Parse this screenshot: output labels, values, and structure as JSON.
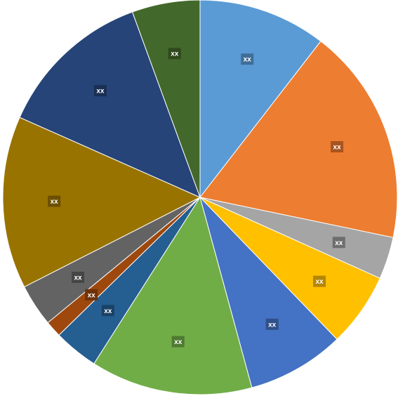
{
  "chart_data": {
    "type": "pie",
    "title": "",
    "start_angle_deg": 0,
    "direction": "clockwise",
    "slices": [
      {
        "label": "xx",
        "value": 10.9,
        "color": "#5B9BD5",
        "label_bg": "#3F6E98"
      },
      {
        "label": "xx",
        "value": 18.5,
        "color": "#ED7D31",
        "label_bg": "#A85420"
      },
      {
        "label": "xx",
        "value": 3.6,
        "color": "#A5A5A5",
        "label_bg": "#6E6E6E"
      },
      {
        "label": "xx",
        "value": 6.3,
        "color": "#FFC000",
        "label_bg": "#B58600"
      },
      {
        "label": "xx",
        "value": 8.3,
        "color": "#4472C4",
        "label_bg": "#2F508A"
      },
      {
        "label": "xx",
        "value": 13.8,
        "color": "#70AD47",
        "label_bg": "#4E7A31"
      },
      {
        "label": "xx",
        "value": 3.8,
        "color": "#255E91",
        "label_bg": "#1A4266"
      },
      {
        "label": "xx",
        "value": 1.4,
        "color": "#9E480E",
        "label_bg": "#6E3209"
      },
      {
        "label": "xx",
        "value": 3.6,
        "color": "#636363",
        "label_bg": "#454545"
      },
      {
        "label": "xx",
        "value": 14.7,
        "color": "#997300",
        "label_bg": "#6B5000"
      },
      {
        "label": "xx",
        "value": 13.3,
        "color": "#264478",
        "label_bg": "#1A2F54"
      },
      {
        "label": "xx",
        "value": 5.8,
        "color": "#43682B",
        "label_bg": "#2F491E"
      }
    ]
  }
}
